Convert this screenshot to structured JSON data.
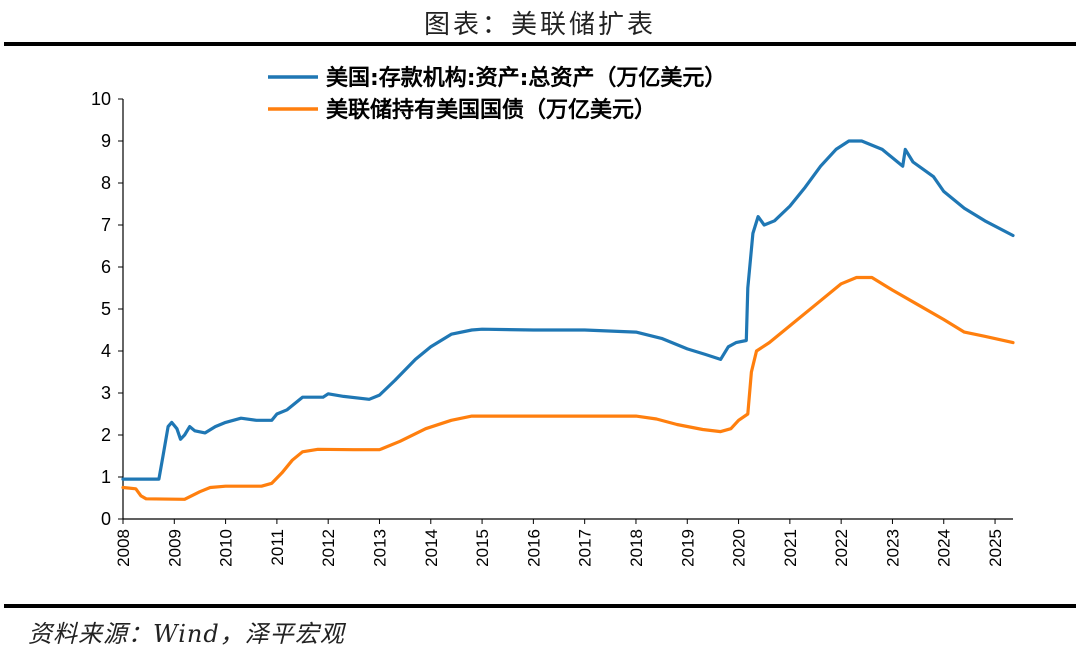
{
  "header": {
    "title": "图表：美联储扩表"
  },
  "footer": {
    "source": "资料来源：Wind，泽平宏观"
  },
  "chart_data": {
    "type": "line",
    "ylim": [
      0,
      10
    ],
    "yticks": [
      "0",
      "1",
      "2",
      "3",
      "4",
      "5",
      "6",
      "7",
      "8",
      "9",
      "10"
    ],
    "xlim": [
      2008,
      2025.35
    ],
    "xticks": [
      "2008",
      "2009",
      "2010",
      "2011",
      "2012",
      "2013",
      "2014",
      "2015",
      "2016",
      "2017",
      "2018",
      "2019",
      "2020",
      "2021",
      "2022",
      "2023",
      "2024",
      "2025"
    ],
    "legend_position": "top",
    "grid": false,
    "series": [
      {
        "name": "美国:存款机构:资产:总资产（万亿美元）",
        "color": "#1f77b4",
        "points": [
          [
            2008.0,
            0.95
          ],
          [
            2008.7,
            0.95
          ],
          [
            2008.78,
            1.5
          ],
          [
            2008.88,
            2.2
          ],
          [
            2008.95,
            2.3
          ],
          [
            2009.05,
            2.15
          ],
          [
            2009.12,
            1.9
          ],
          [
            2009.2,
            2.0
          ],
          [
            2009.3,
            2.2
          ],
          [
            2009.4,
            2.1
          ],
          [
            2009.6,
            2.05
          ],
          [
            2009.8,
            2.2
          ],
          [
            2010.0,
            2.3
          ],
          [
            2010.3,
            2.4
          ],
          [
            2010.6,
            2.35
          ],
          [
            2010.9,
            2.35
          ],
          [
            2011.0,
            2.5
          ],
          [
            2011.2,
            2.6
          ],
          [
            2011.5,
            2.9
          ],
          [
            2011.9,
            2.9
          ],
          [
            2012.0,
            2.98
          ],
          [
            2012.3,
            2.92
          ],
          [
            2012.8,
            2.85
          ],
          [
            2013.0,
            2.95
          ],
          [
            2013.3,
            3.3
          ],
          [
            2013.7,
            3.8
          ],
          [
            2014.0,
            4.1
          ],
          [
            2014.4,
            4.4
          ],
          [
            2014.8,
            4.5
          ],
          [
            2015.0,
            4.52
          ],
          [
            2016.0,
            4.5
          ],
          [
            2017.0,
            4.5
          ],
          [
            2018.0,
            4.45
          ],
          [
            2018.5,
            4.3
          ],
          [
            2019.0,
            4.05
          ],
          [
            2019.35,
            3.92
          ],
          [
            2019.65,
            3.8
          ],
          [
            2019.8,
            4.1
          ],
          [
            2019.95,
            4.2
          ],
          [
            2020.15,
            4.25
          ],
          [
            2020.18,
            5.5
          ],
          [
            2020.28,
            6.8
          ],
          [
            2020.38,
            7.2
          ],
          [
            2020.5,
            7.0
          ],
          [
            2020.7,
            7.1
          ],
          [
            2021.0,
            7.45
          ],
          [
            2021.3,
            7.9
          ],
          [
            2021.6,
            8.4
          ],
          [
            2021.9,
            8.8
          ],
          [
            2022.15,
            9.0
          ],
          [
            2022.4,
            9.0
          ],
          [
            2022.8,
            8.8
          ],
          [
            2023.1,
            8.5
          ],
          [
            2023.2,
            8.4
          ],
          [
            2023.25,
            8.8
          ],
          [
            2023.4,
            8.5
          ],
          [
            2023.8,
            8.15
          ],
          [
            2024.0,
            7.8
          ],
          [
            2024.4,
            7.4
          ],
          [
            2024.8,
            7.1
          ],
          [
            2025.35,
            6.75
          ]
        ]
      },
      {
        "name": "美联储持有美国国债（万亿美元）",
        "color": "#ff7f0e",
        "points": [
          [
            2008.0,
            0.75
          ],
          [
            2008.25,
            0.72
          ],
          [
            2008.35,
            0.55
          ],
          [
            2008.45,
            0.48
          ],
          [
            2009.2,
            0.47
          ],
          [
            2009.5,
            0.65
          ],
          [
            2009.7,
            0.75
          ],
          [
            2010.0,
            0.78
          ],
          [
            2010.7,
            0.78
          ],
          [
            2010.9,
            0.85
          ],
          [
            2011.1,
            1.1
          ],
          [
            2011.3,
            1.4
          ],
          [
            2011.5,
            1.6
          ],
          [
            2011.8,
            1.66
          ],
          [
            2012.5,
            1.65
          ],
          [
            2013.0,
            1.65
          ],
          [
            2013.4,
            1.85
          ],
          [
            2013.9,
            2.15
          ],
          [
            2014.4,
            2.35
          ],
          [
            2014.8,
            2.45
          ],
          [
            2015.0,
            2.45
          ],
          [
            2016.0,
            2.45
          ],
          [
            2017.0,
            2.45
          ],
          [
            2018.0,
            2.45
          ],
          [
            2018.4,
            2.38
          ],
          [
            2018.8,
            2.25
          ],
          [
            2019.3,
            2.13
          ],
          [
            2019.65,
            2.08
          ],
          [
            2019.85,
            2.15
          ],
          [
            2020.0,
            2.35
          ],
          [
            2020.18,
            2.5
          ],
          [
            2020.25,
            3.5
          ],
          [
            2020.35,
            4.0
          ],
          [
            2020.6,
            4.2
          ],
          [
            2021.0,
            4.6
          ],
          [
            2021.5,
            5.1
          ],
          [
            2022.0,
            5.6
          ],
          [
            2022.3,
            5.75
          ],
          [
            2022.6,
            5.75
          ],
          [
            2023.0,
            5.45
          ],
          [
            2023.5,
            5.1
          ],
          [
            2024.0,
            4.75
          ],
          [
            2024.4,
            4.45
          ],
          [
            2024.8,
            4.35
          ],
          [
            2025.35,
            4.2
          ]
        ]
      }
    ]
  }
}
